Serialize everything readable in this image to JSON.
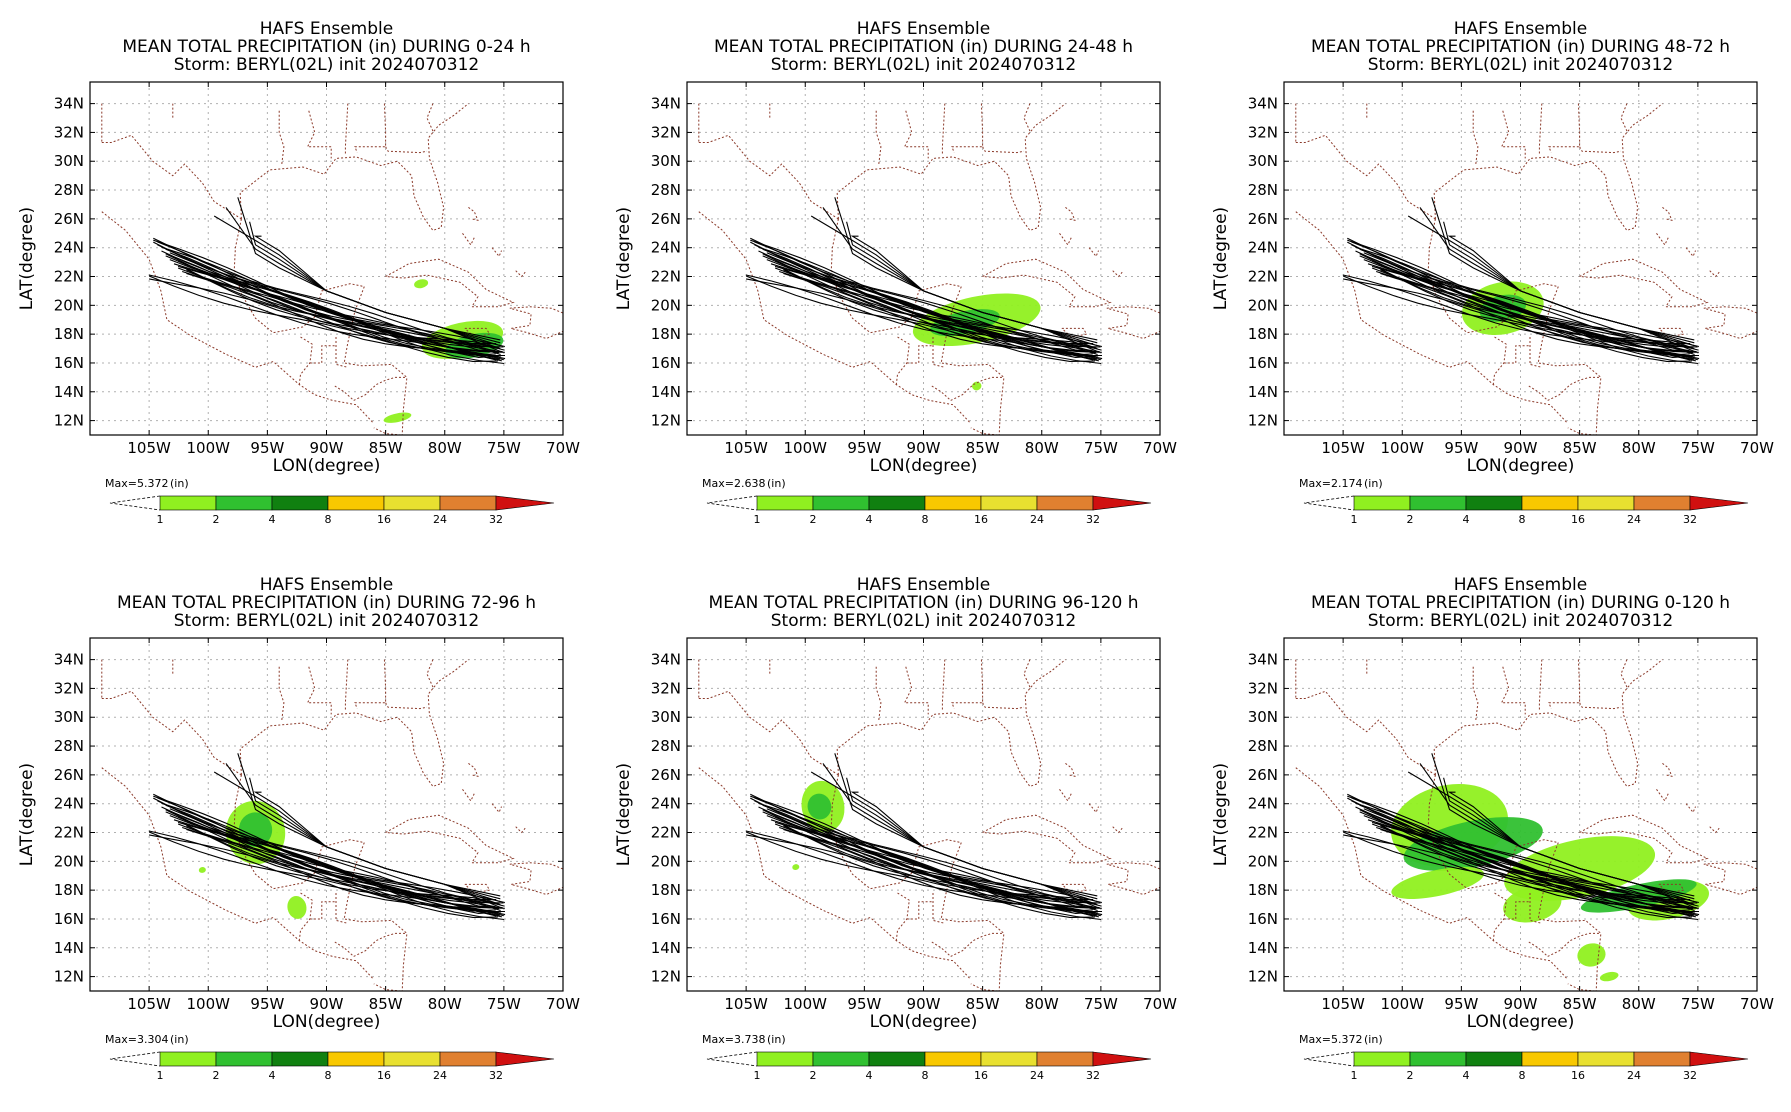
{
  "chart_data": [
    {
      "type": "heatmap",
      "title": [
        "HAFS Ensemble",
        "MEAN TOTAL PRECIPITATION (in) DURING  0-24 h",
        "Storm: BERYL(02L) init 2024070312"
      ],
      "xlabel": "LON(degree)",
      "ylabel": "LAT(degree)",
      "xlim": [
        -110,
        -70
      ],
      "ylim": [
        11,
        35.5
      ],
      "max_label": "Max=5.372",
      "units": "(in)",
      "precip_regions": [
        {
          "lon": -78.5,
          "lat": 17.6,
          "rlon": 3.5,
          "rlat": 1.2,
          "level": 1
        },
        {
          "lon": -77.5,
          "lat": 17.2,
          "rlon": 2.5,
          "rlat": 0.8,
          "level": 2
        },
        {
          "lon": -82,
          "lat": 21.5,
          "rlon": 0.6,
          "rlat": 0.3,
          "level": 1
        },
        {
          "lon": -84,
          "lat": 12.2,
          "rlon": 1.2,
          "rlat": 0.3,
          "level": 1
        }
      ]
    },
    {
      "type": "heatmap",
      "title": [
        "HAFS Ensemble",
        "MEAN TOTAL PRECIPITATION (in) DURING 24-48 h",
        "Storm: BERYL(02L) init 2024070312"
      ],
      "xlabel": "LON(degree)",
      "ylabel": "LAT(degree)",
      "xlim": [
        -110,
        -70
      ],
      "ylim": [
        11,
        35.5
      ],
      "max_label": "Max=2.638",
      "units": "(in)",
      "precip_regions": [
        {
          "lon": -85.5,
          "lat": 19.0,
          "rlon": 5.5,
          "rlat": 1.6,
          "level": 1
        },
        {
          "lon": -86.5,
          "lat": 18.8,
          "rlon": 3.0,
          "rlat": 0.8,
          "level": 2
        },
        {
          "lon": -85.5,
          "lat": 14.4,
          "rlon": 0.4,
          "rlat": 0.3,
          "level": 1
        }
      ]
    },
    {
      "type": "heatmap",
      "title": [
        "HAFS Ensemble",
        "MEAN TOTAL PRECIPITATION (in) DURING 48-72 h",
        "Storm: BERYL(02L) init 2024070312"
      ],
      "xlabel": "LON(degree)",
      "ylabel": "LAT(degree)",
      "xlim": [
        -110,
        -70
      ],
      "ylim": [
        11,
        35.5
      ],
      "max_label": "Max=2.174",
      "units": "(in)",
      "precip_regions": [
        {
          "lon": -91.5,
          "lat": 19.8,
          "rlon": 3.5,
          "rlat": 1.8,
          "level": 1
        },
        {
          "lon": -91.5,
          "lat": 19.8,
          "rlon": 2.0,
          "rlat": 0.9,
          "level": 2
        }
      ]
    },
    {
      "type": "heatmap",
      "title": [
        "HAFS Ensemble",
        "MEAN TOTAL PRECIPITATION (in) DURING 72-96 h",
        "Storm: BERYL(02L) init 2024070312"
      ],
      "xlabel": "LON(degree)",
      "ylabel": "LAT(degree)",
      "xlim": [
        -110,
        -70
      ],
      "ylim": [
        11,
        35.5
      ],
      "max_label": "Max=3.304",
      "units": "(in)",
      "precip_regions": [
        {
          "lon": -96,
          "lat": 22.0,
          "rlon": 2.5,
          "rlat": 2.2,
          "level": 1
        },
        {
          "lon": -96,
          "lat": 22.2,
          "rlon": 1.4,
          "rlat": 1.2,
          "level": 2
        },
        {
          "lon": -92.5,
          "lat": 16.8,
          "rlon": 0.8,
          "rlat": 0.8,
          "level": 1
        },
        {
          "lon": -100.5,
          "lat": 19.4,
          "rlon": 0.3,
          "rlat": 0.2,
          "level": 1
        }
      ]
    },
    {
      "type": "heatmap",
      "title": [
        "HAFS Ensemble",
        "MEAN TOTAL PRECIPITATION (in) DURING 96-120 h",
        "Storm: BERYL(02L) init 2024070312"
      ],
      "xlabel": "LON(degree)",
      "ylabel": "LAT(degree)",
      "xlim": [
        -110,
        -70
      ],
      "ylim": [
        11,
        35.5
      ],
      "max_label": "Max=3.738",
      "units": "(in)",
      "precip_regions": [
        {
          "lon": -98.5,
          "lat": 23.8,
          "rlon": 1.8,
          "rlat": 1.8,
          "level": 1
        },
        {
          "lon": -98.8,
          "lat": 23.8,
          "rlon": 1.0,
          "rlat": 0.9,
          "level": 2
        },
        {
          "lon": -100.8,
          "lat": 19.6,
          "rlon": 0.3,
          "rlat": 0.2,
          "level": 1
        }
      ]
    },
    {
      "type": "heatmap",
      "title": [
        "HAFS Ensemble",
        "MEAN TOTAL PRECIPITATION (in) DURING 0-120 h",
        "Storm: BERYL(02L) init 2024070312"
      ],
      "xlabel": "LON(degree)",
      "ylabel": "LAT(degree)",
      "xlim": [
        -110,
        -70
      ],
      "ylim": [
        11,
        35.5
      ],
      "max_label": "Max=5.372",
      "units": "(in)",
      "precip_regions": [
        {
          "lon": -96,
          "lat": 22.5,
          "rlon": 5.0,
          "rlat": 2.8,
          "level": 1
        },
        {
          "lon": -85,
          "lat": 19.5,
          "rlon": 6.5,
          "rlat": 2.0,
          "level": 1
        },
        {
          "lon": -77.5,
          "lat": 17.3,
          "rlon": 3.5,
          "rlat": 1.3,
          "level": 1
        },
        {
          "lon": -94,
          "lat": 21.2,
          "rlon": 6.0,
          "rlat": 1.6,
          "level": 2
        },
        {
          "lon": -80,
          "lat": 17.6,
          "rlon": 5.0,
          "rlat": 0.8,
          "level": 2
        },
        {
          "lon": -97,
          "lat": 18.5,
          "rlon": 4.0,
          "rlat": 0.9,
          "level": 1
        },
        {
          "lon": -89,
          "lat": 17.0,
          "rlon": 2.5,
          "rlat": 1.2,
          "level": 1
        },
        {
          "lon": -84,
          "lat": 13.5,
          "rlon": 1.2,
          "rlat": 0.8,
          "level": 1
        },
        {
          "lon": -82.5,
          "lat": 12.0,
          "rlon": 0.8,
          "rlat": 0.3,
          "level": 1
        }
      ]
    }
  ],
  "map": {
    "lon_ticks": [
      -105,
      -100,
      -95,
      -90,
      -85,
      -80,
      -75,
      -70
    ],
    "lon_tick_labels": [
      "105W",
      "100W",
      "95W",
      "90W",
      "85W",
      "80W",
      "75W",
      "70W"
    ],
    "lat_ticks": [
      12,
      14,
      16,
      18,
      20,
      22,
      24,
      26,
      28,
      30,
      32,
      34
    ],
    "lat_tick_labels": [
      "12N",
      "14N",
      "16N",
      "18N",
      "20N",
      "22N",
      "24N",
      "26N",
      "28N",
      "30N",
      "32N",
      "34N"
    ]
  },
  "legend": {
    "thresholds": [
      "1",
      "2",
      "4",
      "8",
      "16",
      "24",
      "32"
    ],
    "colors": [
      "#90f020",
      "#30c030",
      "#108010",
      "#f8c800",
      "#e8e030",
      "#e08030",
      "#d01010"
    ]
  },
  "colors": {
    "track": "#000000",
    "coast": "#8b3a2a",
    "grid": "#b0b0b0"
  }
}
